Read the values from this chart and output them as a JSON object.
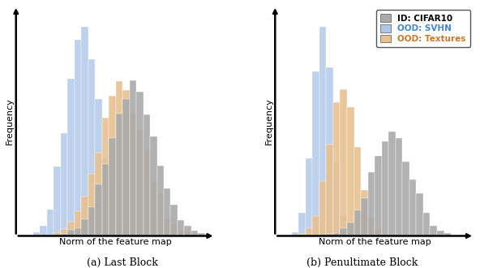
{
  "fig_width": 5.92,
  "fig_height": 3.3,
  "dpi": 100,
  "color_id": "#aaaaaa",
  "color_svhn": "#aec6e8",
  "color_textures": "#e8c090",
  "alpha_id": 0.9,
  "alpha_svhn": 0.8,
  "alpha_textures": 0.9,
  "legend_labels": [
    "ID: CIFAR10",
    "OOD: SVHN",
    "OOD: Textures"
  ],
  "legend_text_colors": [
    "black",
    "#4488cc",
    "#cc7722"
  ],
  "legend_face_colors": [
    "#aaaaaa",
    "#aec6e8",
    "#e8c090"
  ],
  "xlabel": "Norm of the feature map",
  "ylabel": "Frequency",
  "subtitle_a": "(a) Last Block",
  "subtitle_b": "(b) Penultimate Block",
  "plot_a": {
    "svhn": {
      "mu": 35,
      "sigma": 10,
      "n": 5000
    },
    "id": {
      "mu": 65,
      "sigma": 14,
      "n": 5000
    },
    "textures": {
      "mu": 58,
      "sigma": 14,
      "n": 5000
    }
  },
  "plot_b": {
    "svhn": {
      "mu": 25,
      "sigma": 7,
      "n": 5000
    },
    "id": {
      "mu": 75,
      "sigma": 15,
      "n": 5000
    },
    "textures": {
      "mu": 40,
      "sigma": 10,
      "n": 5000
    }
  },
  "n_bins": 28,
  "grid_color": "#bbbbbb",
  "grid_lw": 0.6,
  "spine_lw": 1.8,
  "arrow_mutation_scale": 8
}
